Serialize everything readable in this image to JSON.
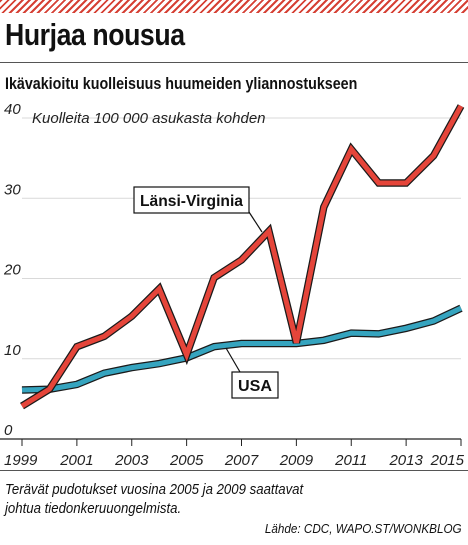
{
  "header": {
    "title": "Hurjaa nousua",
    "subtitle": "Ikävakioitu kuolleisuus huumeiden yliannostukseen"
  },
  "footnote": "Terävät pudotukset vuosina 2005 ja 2009 saattavat johtua tiedonkeruuongelmista.",
  "source": "Lähde: CDC, WAPO.ST/WONKBLOG",
  "colors": {
    "accent": "#d64135",
    "west_virginia": "#e5453a",
    "usa": "#35a4bf",
    "grid": "#d9d9d9"
  },
  "chart_data": {
    "type": "line",
    "unit_label": "Kuolleita 100 000 asukasta kohden",
    "ylim": [
      0,
      40
    ],
    "y_ticks": [
      0,
      10,
      20,
      30,
      40
    ],
    "x_ticks": [
      "1999",
      "2001",
      "2003",
      "2005",
      "2007",
      "2009",
      "2011",
      "2013",
      "2015"
    ],
    "grid": true,
    "series": [
      {
        "name": "Länsi-Virginia",
        "color": "#e5453a",
        "x": [
          1999,
          2000,
          2001,
          2002,
          2003,
          2004,
          2005,
          2006,
          2007,
          2008,
          2009,
          2010,
          2011,
          2012,
          2013,
          2014,
          2015
        ],
        "values": [
          4.1,
          6.2,
          11.5,
          12.8,
          15.3,
          18.7,
          10.5,
          20.1,
          22.3,
          25.9,
          12.0,
          28.9,
          36.1,
          31.9,
          31.9,
          35.3,
          41.5
        ]
      },
      {
        "name": "USA",
        "color": "#35a4bf",
        "x": [
          1999,
          2000,
          2001,
          2002,
          2003,
          2004,
          2005,
          2006,
          2007,
          2008,
          2009,
          2010,
          2011,
          2012,
          2013,
          2014,
          2015
        ],
        "values": [
          6.1,
          6.2,
          6.8,
          8.2,
          8.9,
          9.4,
          10.1,
          11.5,
          11.9,
          11.9,
          11.9,
          12.3,
          13.2,
          13.1,
          13.8,
          14.7,
          16.3
        ]
      }
    ]
  }
}
